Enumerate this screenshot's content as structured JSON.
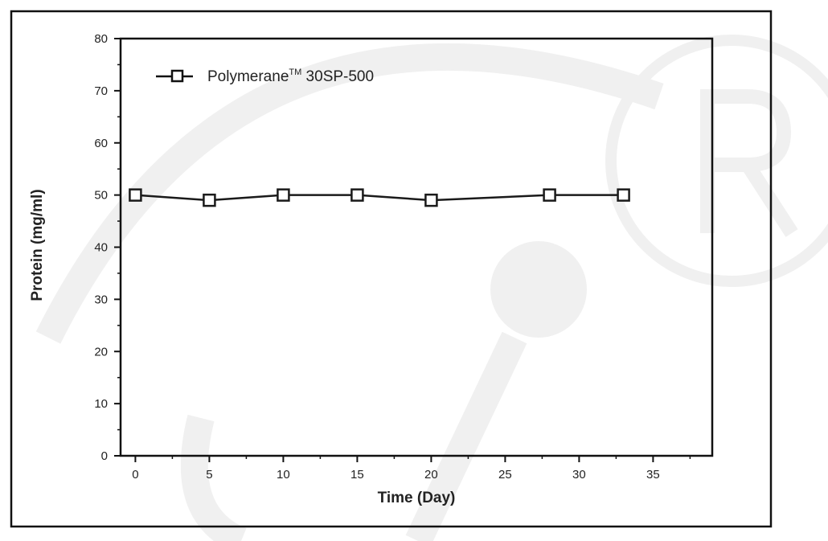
{
  "chart_data": {
    "type": "line",
    "title": "",
    "xlabel": "Time (Day)",
    "ylabel": "Protein (mg/ml)",
    "xlim": [
      -1,
      39
    ],
    "ylim": [
      0,
      80
    ],
    "x_ticks": [
      "0",
      "5",
      "10",
      "15",
      "20",
      "25",
      "30",
      "35"
    ],
    "x_tick_values": [
      0,
      5,
      10,
      15,
      20,
      25,
      30,
      35
    ],
    "y_ticks": [
      "0",
      "10",
      "20",
      "30",
      "40",
      "50",
      "60",
      "70",
      "80"
    ],
    "y_tick_values": [
      0,
      10,
      20,
      30,
      40,
      50,
      60,
      70,
      80
    ],
    "grid": false,
    "legend_position": "top-left",
    "series": [
      {
        "name": "Polymerane™ 30SP-500",
        "name_main": "Polymerane",
        "name_sup": "TM",
        "name_rest": " 30SP-500",
        "marker": "open-square",
        "color": "#1a1a1a",
        "x": [
          0,
          5,
          10,
          15,
          20,
          28,
          33
        ],
        "y": [
          50,
          49,
          50,
          50,
          49,
          50,
          50
        ]
      }
    ]
  },
  "colors": {
    "frame": "#111111",
    "axis": "#111111",
    "watermark": "#f0f0f0"
  }
}
